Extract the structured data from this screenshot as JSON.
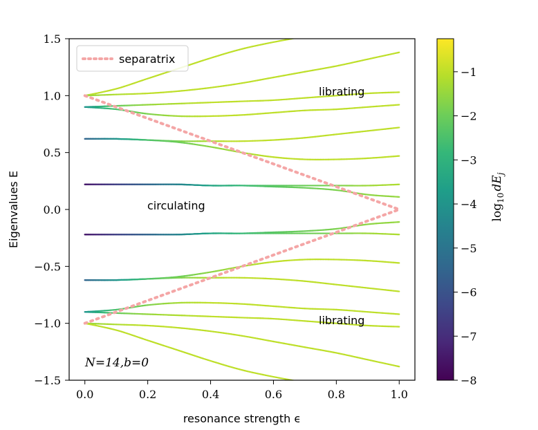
{
  "chart_data": {
    "type": "line",
    "xlabel": "resonance strength ϵ",
    "ylabel": "Eigenvalues E",
    "xlim": [
      -0.05,
      1.05
    ],
    "ylim": [
      -1.5,
      1.5
    ],
    "xticks": [
      "0.0",
      "0.2",
      "0.4",
      "0.6",
      "0.8",
      "1.0"
    ],
    "yticks": [
      "−1.5",
      "−1.0",
      "−0.5",
      "0.0",
      "0.5",
      "1.0",
      "1.5"
    ],
    "legend": {
      "location": "top-left",
      "entries": [
        {
          "label": "separatrix",
          "style": "dotted",
          "color": "#f4a6a6"
        }
      ]
    },
    "annotations": [
      {
        "text": "librating",
        "x": 0.74,
        "y": 1.02
      },
      {
        "text": "circulating",
        "x": 0.2,
        "y": 0.02
      },
      {
        "text": "librating",
        "x": 0.74,
        "y": -0.98
      },
      {
        "text": "N=14,b=0",
        "x": 0.0,
        "y": -1.34
      }
    ],
    "colorbar": {
      "label": "log10 dEj",
      "label_main": "log",
      "label_sub": "10",
      "label_var": "dE",
      "label_subscript": "j",
      "range": [
        -8,
        -0.25
      ],
      "ticks": [
        "−1",
        "−2",
        "−3",
        "−4",
        "−5",
        "−6",
        "−7",
        "−8"
      ],
      "colormap": [
        "#440154",
        "#482878",
        "#3e4989",
        "#31688e",
        "#26828e",
        "#1f9e89",
        "#35b779",
        "#6ece58",
        "#b5de2b",
        "#fde725"
      ]
    },
    "separatrix": {
      "x": [
        0.0,
        1.0
      ],
      "upper": [
        1.0,
        0.0
      ],
      "lower": [
        -1.0,
        0.0
      ]
    },
    "series": [
      {
        "name": "level 1",
        "x": [
          0.0,
          0.1,
          0.2,
          0.3,
          0.4,
          0.5,
          0.6,
          0.7
        ],
        "y": [
          1.0,
          1.06,
          1.15,
          1.24,
          1.33,
          1.41,
          1.47,
          1.52
        ],
        "logdE": [
          -1.0,
          -1.0,
          -1.0,
          -1.0,
          -1.0,
          -1.0,
          -1.0,
          -1.0
        ]
      },
      {
        "name": "level 2",
        "x": [
          0.0,
          0.1,
          0.2,
          0.3,
          0.4,
          0.5,
          0.6,
          0.7,
          0.8,
          0.9,
          1.0
        ],
        "y": [
          1.0,
          1.01,
          1.02,
          1.04,
          1.07,
          1.11,
          1.16,
          1.21,
          1.26,
          1.32,
          1.38
        ],
        "logdE": [
          -1.5,
          -1.2,
          -1.0,
          -1.0,
          -1.0,
          -1.0,
          -1.0,
          -1.0,
          -1.0,
          -1.0,
          -1.0
        ]
      },
      {
        "name": "level 3",
        "x": [
          0.0,
          0.1,
          0.2,
          0.3,
          0.4,
          0.5,
          0.6,
          0.7,
          0.8,
          0.9,
          1.0
        ],
        "y": [
          0.9,
          0.91,
          0.92,
          0.93,
          0.94,
          0.95,
          0.96,
          0.98,
          1.0,
          1.02,
          1.03
        ],
        "logdE": [
          -4.0,
          -2.2,
          -1.5,
          -1.2,
          -1.0,
          -1.0,
          -1.0,
          -1.0,
          -1.0,
          -1.0,
          -1.0
        ]
      },
      {
        "name": "level 4",
        "x": [
          0.0,
          0.1,
          0.2,
          0.3,
          0.4,
          0.5,
          0.6,
          0.7,
          0.8,
          0.9,
          1.0
        ],
        "y": [
          0.9,
          0.88,
          0.84,
          0.82,
          0.82,
          0.83,
          0.85,
          0.87,
          0.88,
          0.9,
          0.92
        ],
        "logdE": [
          -4.0,
          -2.5,
          -1.8,
          -1.3,
          -1.0,
          -1.0,
          -1.0,
          -1.0,
          -1.0,
          -1.0,
          -1.0
        ]
      },
      {
        "name": "level 5",
        "x": [
          0.0,
          0.1,
          0.2,
          0.3,
          0.4,
          0.5,
          0.6,
          0.7,
          0.8,
          0.9,
          1.0
        ],
        "y": [
          0.62,
          0.62,
          0.61,
          0.6,
          0.6,
          0.6,
          0.61,
          0.63,
          0.66,
          0.69,
          0.72
        ],
        "logdE": [
          -5.5,
          -4.0,
          -2.5,
          -1.8,
          -1.2,
          -1.0,
          -1.0,
          -1.0,
          -1.0,
          -1.0,
          -1.0
        ]
      },
      {
        "name": "level 6",
        "x": [
          0.0,
          0.1,
          0.2,
          0.3,
          0.4,
          0.5,
          0.6,
          0.7,
          0.8,
          0.9,
          1.0
        ],
        "y": [
          0.62,
          0.62,
          0.61,
          0.59,
          0.55,
          0.5,
          0.46,
          0.44,
          0.44,
          0.45,
          0.47
        ],
        "logdE": [
          -5.5,
          -4.0,
          -2.5,
          -2.0,
          -1.6,
          -1.3,
          -1.0,
          -1.0,
          -1.0,
          -1.0,
          -1.0
        ]
      },
      {
        "name": "level 7",
        "x": [
          0.0,
          0.1,
          0.2,
          0.3,
          0.4,
          0.5,
          0.6,
          0.7,
          0.8,
          0.9,
          1.0
        ],
        "y": [
          0.22,
          0.22,
          0.22,
          0.22,
          0.21,
          0.21,
          0.21,
          0.21,
          0.21,
          0.21,
          0.22
        ],
        "logdE": [
          -7.5,
          -6.5,
          -5.5,
          -4.5,
          -3.5,
          -2.8,
          -2.3,
          -2.0,
          -1.8,
          -1.4,
          -1.2
        ]
      },
      {
        "name": "level 8",
        "x": [
          0.0,
          0.1,
          0.2,
          0.3,
          0.4,
          0.5,
          0.6,
          0.7,
          0.8,
          0.9,
          1.0
        ],
        "y": [
          0.22,
          0.22,
          0.22,
          0.22,
          0.21,
          0.21,
          0.2,
          0.19,
          0.17,
          0.13,
          0.11
        ],
        "logdE": [
          -7.5,
          -6.5,
          -5.5,
          -4.5,
          -3.5,
          -2.8,
          -2.3,
          -2.0,
          -1.8,
          -1.6,
          -1.5
        ]
      },
      {
        "name": "level 9",
        "x": [
          0.0,
          0.1,
          0.2,
          0.3,
          0.4,
          0.5,
          0.6,
          0.7,
          0.8,
          0.9,
          1.0
        ],
        "y": [
          -0.22,
          -0.22,
          -0.22,
          -0.22,
          -0.21,
          -0.21,
          -0.2,
          -0.19,
          -0.17,
          -0.13,
          -0.11
        ],
        "logdE": [
          -7.5,
          -6.5,
          -5.5,
          -4.5,
          -3.5,
          -2.8,
          -2.3,
          -2.0,
          -1.8,
          -1.6,
          -1.5
        ]
      },
      {
        "name": "level 10",
        "x": [
          0.0,
          0.1,
          0.2,
          0.3,
          0.4,
          0.5,
          0.6,
          0.7,
          0.8,
          0.9,
          1.0
        ],
        "y": [
          -0.22,
          -0.22,
          -0.22,
          -0.22,
          -0.21,
          -0.21,
          -0.21,
          -0.21,
          -0.21,
          -0.21,
          -0.22
        ],
        "logdE": [
          -7.5,
          -6.5,
          -5.5,
          -4.5,
          -3.5,
          -2.8,
          -2.3,
          -2.0,
          -1.8,
          -1.4,
          -1.2
        ]
      },
      {
        "name": "level 11",
        "x": [
          0.0,
          0.1,
          0.2,
          0.3,
          0.4,
          0.5,
          0.6,
          0.7,
          0.8,
          0.9,
          1.0
        ],
        "y": [
          -0.62,
          -0.62,
          -0.61,
          -0.59,
          -0.55,
          -0.5,
          -0.46,
          -0.44,
          -0.44,
          -0.45,
          -0.47
        ],
        "logdE": [
          -5.5,
          -4.0,
          -2.5,
          -2.0,
          -1.6,
          -1.3,
          -1.0,
          -1.0,
          -1.0,
          -1.0,
          -1.0
        ]
      },
      {
        "name": "level 12",
        "x": [
          0.0,
          0.1,
          0.2,
          0.3,
          0.4,
          0.5,
          0.6,
          0.7,
          0.8,
          0.9,
          1.0
        ],
        "y": [
          -0.62,
          -0.62,
          -0.61,
          -0.6,
          -0.6,
          -0.6,
          -0.61,
          -0.63,
          -0.66,
          -0.69,
          -0.72
        ],
        "logdE": [
          -5.5,
          -4.0,
          -2.5,
          -1.8,
          -1.2,
          -1.0,
          -1.0,
          -1.0,
          -1.0,
          -1.0,
          -1.0
        ]
      },
      {
        "name": "level 13",
        "x": [
          0.0,
          0.1,
          0.2,
          0.3,
          0.4,
          0.5,
          0.6,
          0.7,
          0.8,
          0.9,
          1.0
        ],
        "y": [
          -0.9,
          -0.88,
          -0.84,
          -0.82,
          -0.82,
          -0.83,
          -0.85,
          -0.87,
          -0.88,
          -0.9,
          -0.92
        ],
        "logdE": [
          -4.0,
          -2.5,
          -1.8,
          -1.3,
          -1.0,
          -1.0,
          -1.0,
          -1.0,
          -1.0,
          -1.0,
          -1.0
        ]
      },
      {
        "name": "level 14",
        "x": [
          0.0,
          0.1,
          0.2,
          0.3,
          0.4,
          0.5,
          0.6,
          0.7,
          0.8,
          0.9,
          1.0
        ],
        "y": [
          -0.9,
          -0.91,
          -0.92,
          -0.93,
          -0.94,
          -0.95,
          -0.96,
          -0.98,
          -1.0,
          -1.02,
          -1.03
        ],
        "logdE": [
          -4.0,
          -2.2,
          -1.5,
          -1.2,
          -1.0,
          -1.0,
          -1.0,
          -1.0,
          -1.0,
          -1.0,
          -1.0
        ]
      },
      {
        "name": "level 15",
        "x": [
          0.0,
          0.1,
          0.2,
          0.3,
          0.4,
          0.5,
          0.6,
          0.7,
          0.8,
          0.9,
          1.0
        ],
        "y": [
          -1.0,
          -1.01,
          -1.02,
          -1.04,
          -1.07,
          -1.11,
          -1.16,
          -1.21,
          -1.26,
          -1.32,
          -1.38
        ],
        "logdE": [
          -1.5,
          -1.2,
          -1.0,
          -1.0,
          -1.0,
          -1.0,
          -1.0,
          -1.0,
          -1.0,
          -1.0,
          -1.0
        ]
      },
      {
        "name": "level 16",
        "x": [
          0.0,
          0.1,
          0.2,
          0.3,
          0.4,
          0.5,
          0.6,
          0.7
        ],
        "y": [
          -1.0,
          -1.06,
          -1.15,
          -1.24,
          -1.33,
          -1.41,
          -1.47,
          -1.52
        ],
        "logdE": [
          -1.0,
          -1.0,
          -1.0,
          -1.0,
          -1.0,
          -1.0,
          -1.0,
          -1.0
        ]
      }
    ]
  }
}
